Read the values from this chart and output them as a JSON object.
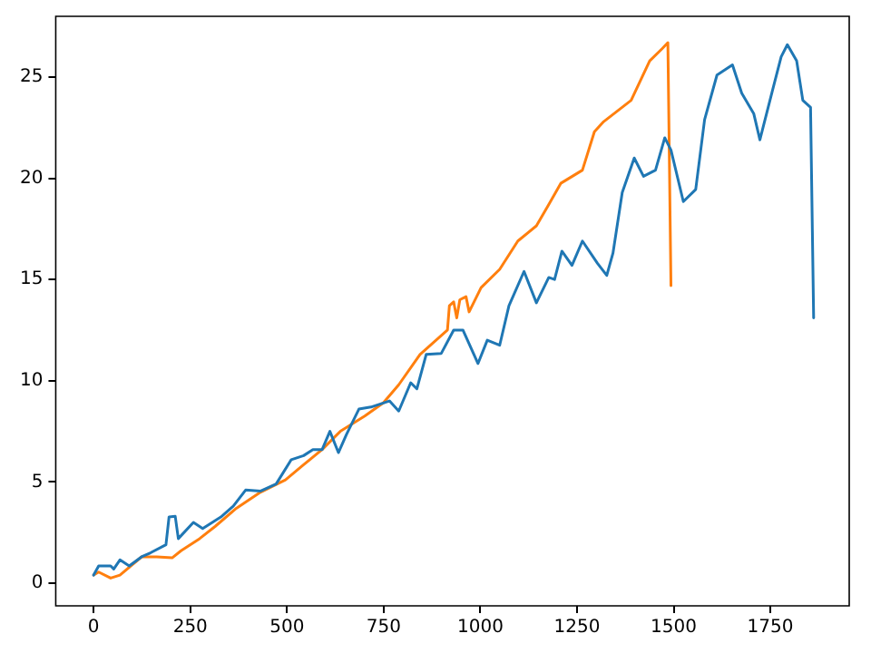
{
  "chart_data": {
    "type": "line",
    "xlim": [
      -98,
      1954
    ],
    "ylim": [
      -1.12,
      28
    ],
    "xticks": [
      0,
      250,
      500,
      750,
      1000,
      1250,
      1500,
      1750
    ],
    "yticks": [
      0,
      5,
      10,
      15,
      20,
      25
    ],
    "grid": false,
    "legend": false,
    "marker": "none",
    "line_style": "solid",
    "series": [
      {
        "color": "#1f77b4",
        "x": [
          0,
          13,
          44,
          52,
          68,
          92,
          124,
          147,
          187,
          195,
          211,
          219,
          258,
          282,
          329,
          361,
          393,
          432,
          472,
          511,
          543,
          567,
          591,
          611,
          633,
          654,
          686,
          717,
          749,
          765,
          789,
          820,
          836,
          860,
          899,
          931,
          955,
          994,
          1018,
          1050,
          1074,
          1113,
          1145,
          1177,
          1192,
          1211,
          1237,
          1264,
          1303,
          1327,
          1343,
          1367,
          1398,
          1422,
          1453,
          1477,
          1493,
          1525,
          1557,
          1580,
          1612,
          1652,
          1676,
          1707,
          1723,
          1755,
          1778,
          1794,
          1818,
          1834,
          1854,
          1862
        ],
        "values": [
          0.4,
          0.85,
          0.85,
          0.7,
          1.15,
          0.85,
          1.3,
          1.5,
          1.9,
          3.27,
          3.3,
          2.2,
          3.0,
          2.7,
          3.27,
          3.8,
          4.6,
          4.55,
          4.9,
          6.1,
          6.3,
          6.6,
          6.6,
          7.5,
          6.45,
          7.35,
          8.6,
          8.7,
          8.9,
          9.0,
          8.5,
          9.9,
          9.6,
          11.3,
          11.35,
          12.5,
          12.5,
          10.85,
          12.0,
          11.75,
          13.7,
          15.4,
          13.85,
          15.1,
          15.0,
          16.4,
          15.7,
          16.9,
          15.8,
          15.2,
          16.3,
          19.3,
          21.0,
          20.1,
          20.4,
          22.0,
          21.4,
          18.85,
          19.45,
          22.9,
          25.1,
          25.6,
          24.2,
          23.2,
          21.9,
          24.3,
          26.0,
          26.6,
          25.8,
          23.85,
          23.5,
          13.1
        ]
      },
      {
        "color": "#ff7f0e",
        "x": [
          0,
          13,
          44,
          68,
          124,
          163,
          203,
          226,
          274,
          314,
          369,
          432,
          496,
          543,
          591,
          638,
          701,
          749,
          789,
          844,
          915,
          920,
          931,
          939,
          947,
          963,
          971,
          1002,
          1050,
          1097,
          1145,
          1177,
          1208,
          1264,
          1295,
          1319,
          1390,
          1438,
          1470,
          1485,
          1493
        ],
        "values": [
          0.4,
          0.55,
          0.25,
          0.4,
          1.3,
          1.3,
          1.25,
          1.6,
          2.2,
          2.8,
          3.7,
          4.5,
          5.1,
          5.85,
          6.6,
          7.5,
          8.25,
          8.9,
          9.8,
          11.3,
          12.5,
          13.7,
          13.9,
          13.1,
          14.0,
          14.15,
          13.4,
          14.6,
          15.5,
          16.9,
          17.65,
          18.7,
          19.75,
          20.4,
          22.3,
          22.8,
          23.85,
          25.8,
          26.4,
          26.7,
          14.7
        ]
      }
    ]
  }
}
